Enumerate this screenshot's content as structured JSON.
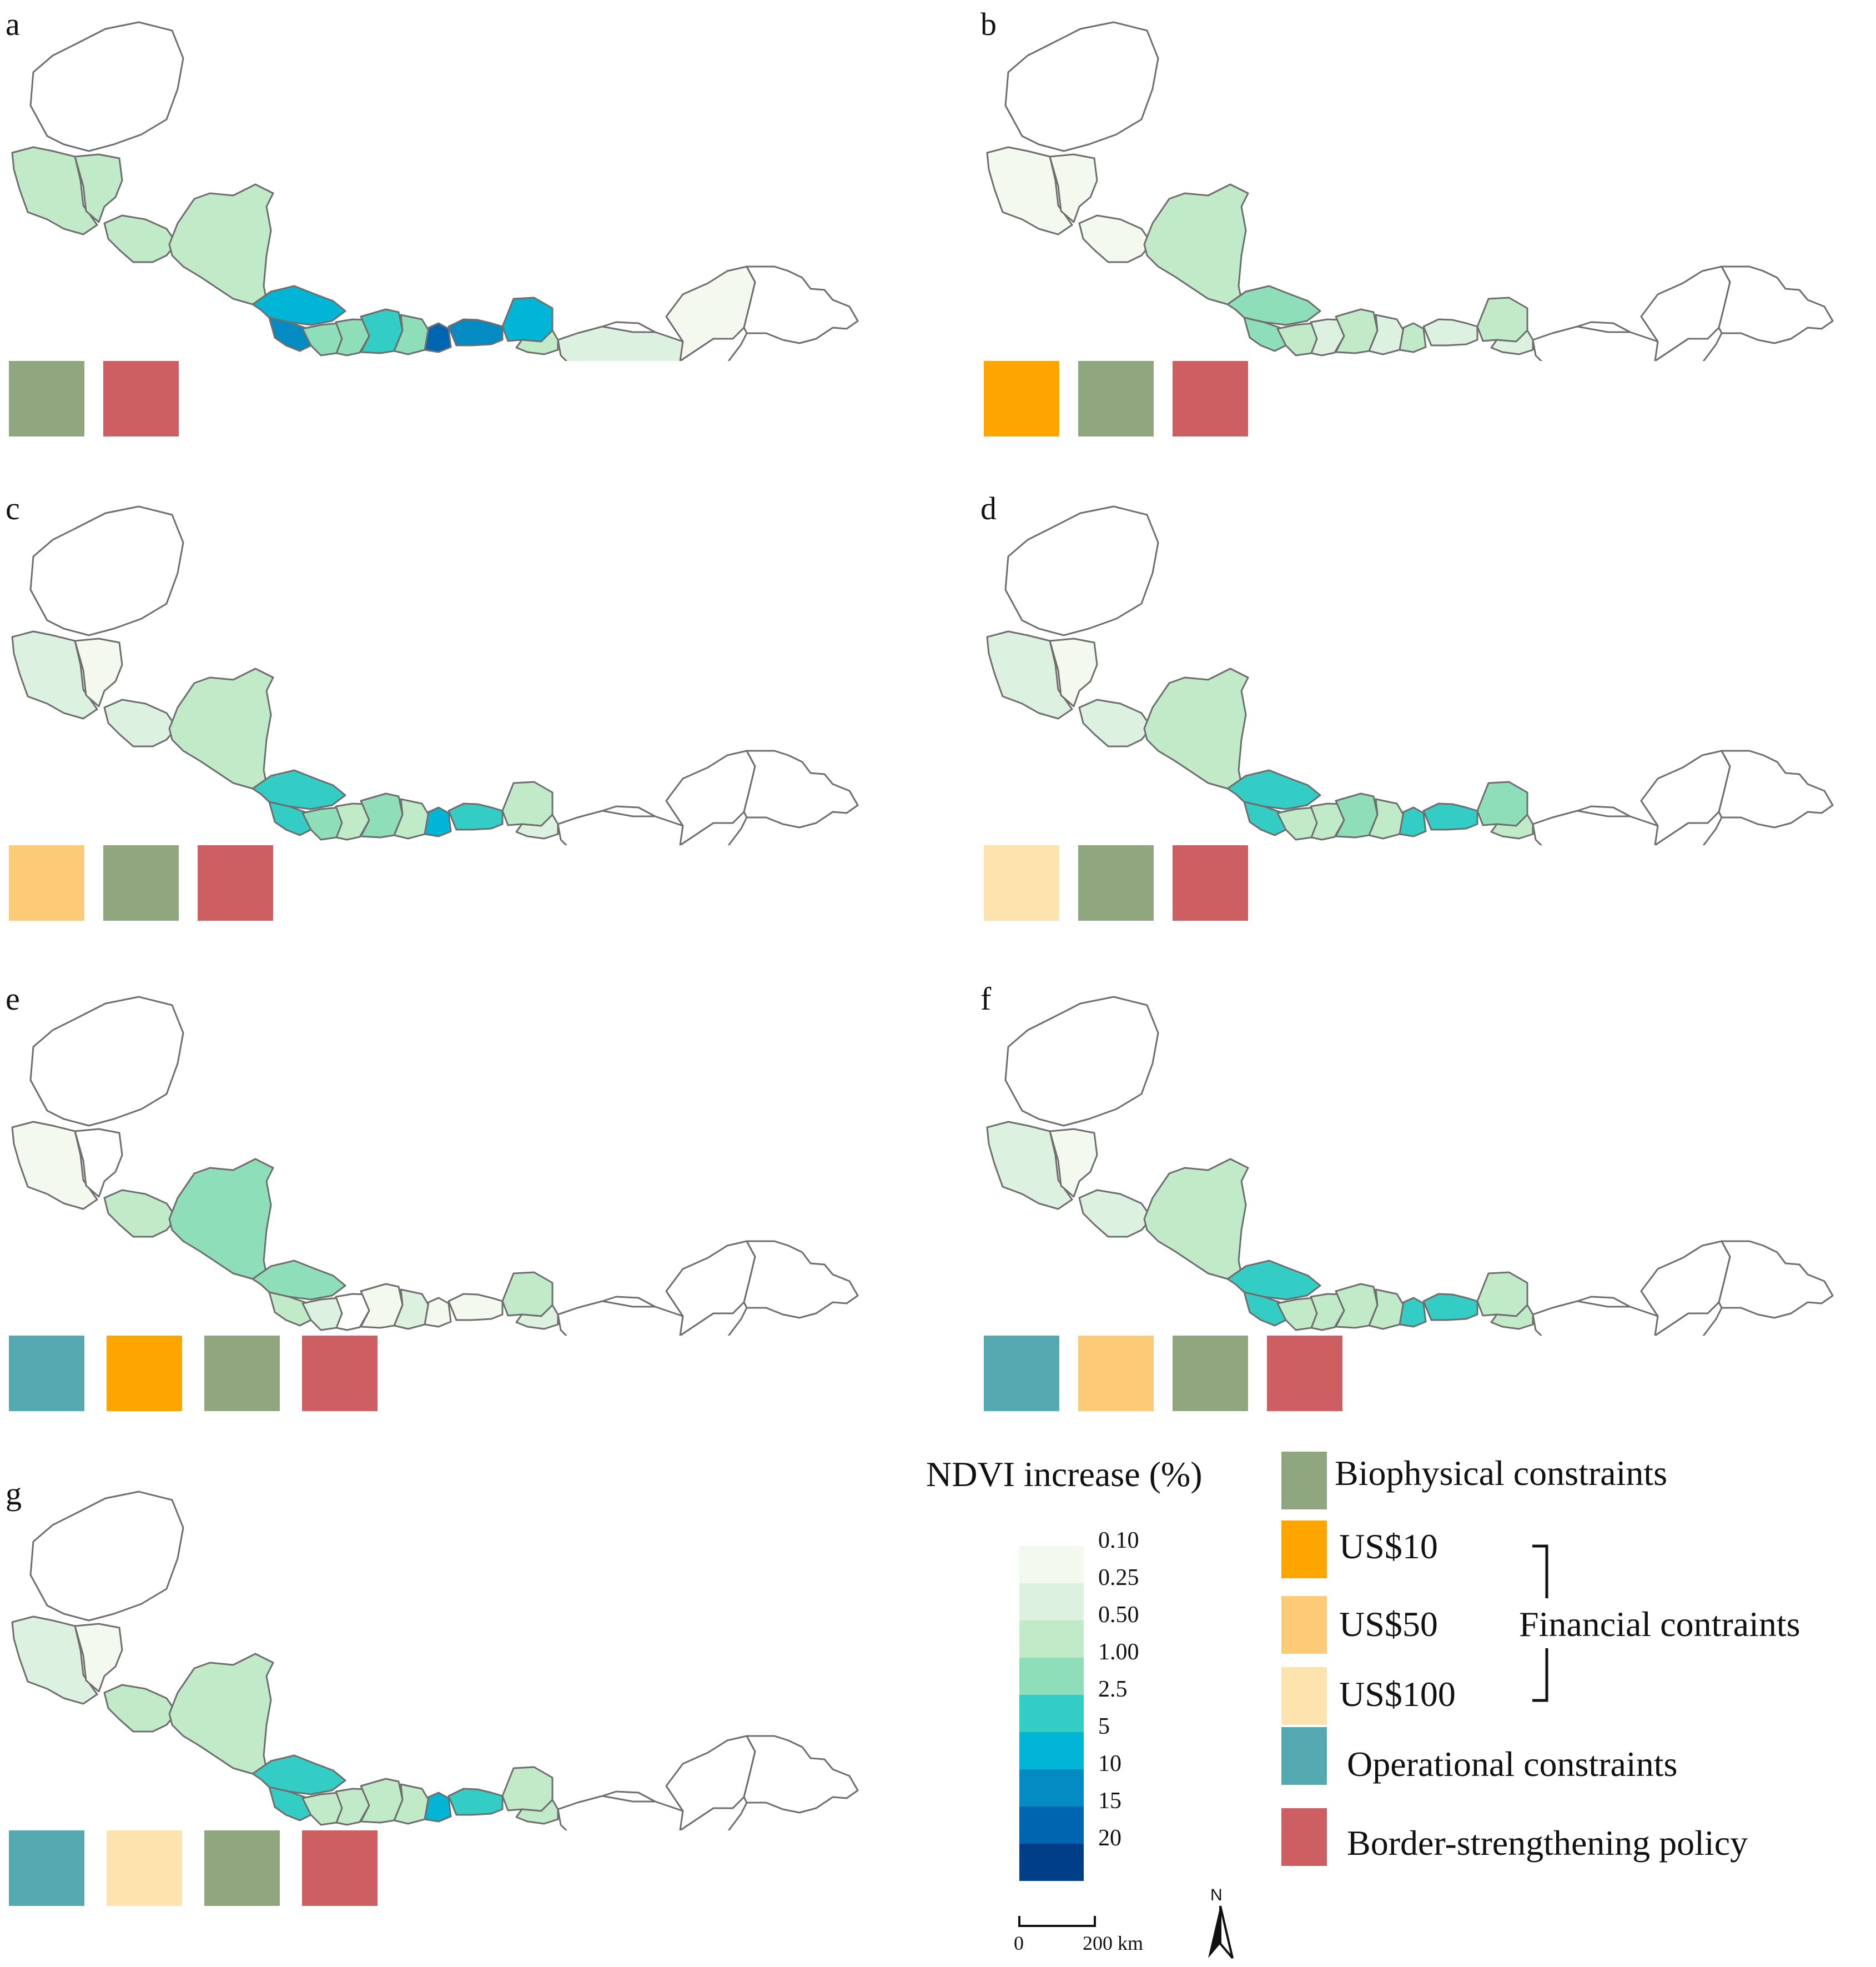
{
  "colors": {
    "biophysical": "#8fa67f",
    "us10": "#fea500",
    "us50": "#fdca78",
    "us100": "#fde3ad",
    "operational": "#55a9b1",
    "border": "#cd5f62",
    "outline": "#6e6e6e"
  },
  "ndvi_ramp": [
    {
      "value": "0.10",
      "color": "#f4f9ef"
    },
    {
      "value": "0.25",
      "color": "#ddf1e0"
    },
    {
      "value": "0.50",
      "color": "#c1eac9"
    },
    {
      "value": "1.00",
      "color": "#8edfb9"
    },
    {
      "value": "2.5",
      "color": "#33cdc5"
    },
    {
      "value": "5",
      "color": "#00b5d6"
    },
    {
      "value": "10",
      "color": "#048bc4"
    },
    {
      "value": "15",
      "color": "#0065b0"
    },
    {
      "value": "20",
      "color": "#003f87"
    }
  ],
  "panels": [
    {
      "id": "a",
      "constraints": [
        "biophysical",
        "border"
      ],
      "levels": [
        0,
        3,
        3,
        3,
        3,
        6,
        7,
        4,
        4,
        5,
        4,
        8,
        7,
        6,
        3,
        2,
        1,
        0,
        0,
        0
      ]
    },
    {
      "id": "b",
      "constraints": [
        "us10",
        "biophysical",
        "border"
      ],
      "levels": [
        0,
        1,
        1,
        1,
        3,
        4,
        4,
        3,
        2,
        3,
        2,
        3,
        2,
        3,
        2,
        0,
        0,
        0,
        0,
        0
      ]
    },
    {
      "id": "c",
      "constraints": [
        "us50",
        "biophysical",
        "border"
      ],
      "levels": [
        0,
        2,
        1,
        2,
        3,
        5,
        5,
        4,
        3,
        4,
        3,
        6,
        5,
        3,
        2,
        0,
        0,
        0,
        0,
        0
      ]
    },
    {
      "id": "d",
      "constraints": [
        "us100",
        "biophysical",
        "border"
      ],
      "levels": [
        0,
        2,
        1,
        2,
        3,
        5,
        5,
        3,
        3,
        4,
        3,
        5,
        5,
        4,
        3,
        0,
        0,
        0,
        0,
        0
      ]
    },
    {
      "id": "e",
      "constraints": [
        "operational",
        "us10",
        "biophysical",
        "border"
      ],
      "levels": [
        0,
        1,
        0,
        3,
        4,
        4,
        3,
        2,
        0,
        1,
        2,
        1,
        1,
        3,
        2,
        0,
        0,
        0,
        0,
        0
      ]
    },
    {
      "id": "f",
      "constraints": [
        "operational",
        "us50",
        "biophysical",
        "border"
      ],
      "levels": [
        0,
        2,
        1,
        2,
        3,
        5,
        5,
        3,
        3,
        3,
        3,
        5,
        5,
        3,
        3,
        0,
        0,
        0,
        0,
        0
      ]
    },
    {
      "id": "g",
      "constraints": [
        "operational",
        "us100",
        "biophysical",
        "border"
      ],
      "levels": [
        0,
        2,
        1,
        3,
        3,
        5,
        5,
        3,
        3,
        3,
        3,
        6,
        5,
        3,
        3,
        0,
        0,
        0,
        0,
        0
      ]
    }
  ],
  "legend": {
    "ndvi_title": "NDVI increase (%)",
    "biophysical": "Biophysical constraints",
    "us10": "US$10",
    "us50": "US$50",
    "us100": "US$100",
    "financial": "Financial contraints",
    "operational": "Operational constraints",
    "border": "Border-strengthening policy"
  },
  "scale_bar": {
    "zero": "0",
    "distance": "200 km"
  },
  "north_label": "N"
}
